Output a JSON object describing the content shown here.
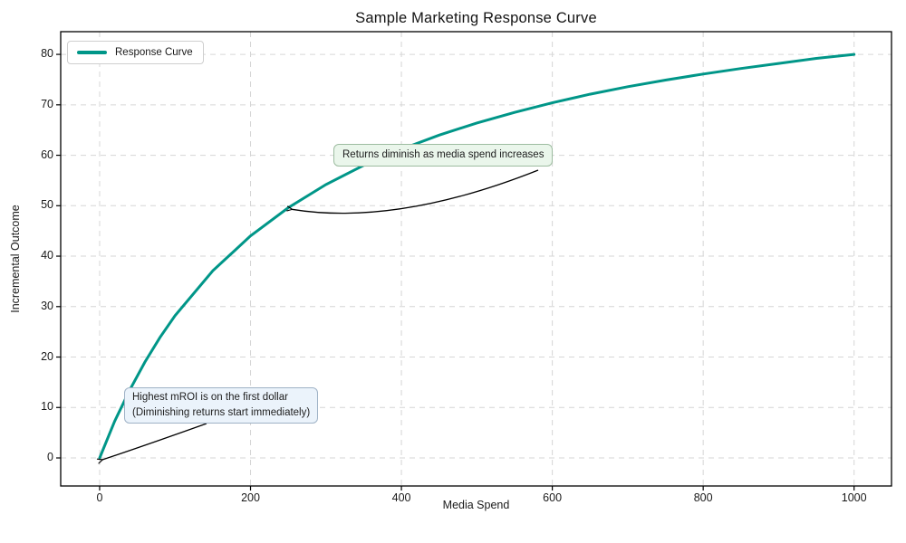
{
  "title": "Sample Marketing Response Curve",
  "axes": {
    "xlabel": "Media Spend",
    "ylabel": "Incremental Outcome"
  },
  "legend": {
    "position": "upper left",
    "items": [
      {
        "label": "Response Curve",
        "color": "#009688"
      }
    ]
  },
  "chart_data": {
    "type": "line",
    "title": "Sample Marketing Response Curve",
    "xlabel": "Media Spend",
    "ylabel": "Incremental Outcome",
    "xlim": [
      -51.6,
      1049.6
    ],
    "ylim": [
      -5.56,
      84.5
    ],
    "x_ticks": [
      0,
      200,
      400,
      600,
      800,
      1000
    ],
    "y_ticks": [
      0,
      10,
      20,
      30,
      40,
      50,
      60,
      70,
      80
    ],
    "grid": true,
    "grid_style": "dashed",
    "legend_position": "upper left",
    "series": [
      {
        "name": "Response Curve",
        "color": "#009688",
        "x": [
          0,
          20,
          40,
          60,
          80,
          100,
          150,
          200,
          250,
          300,
          350,
          400,
          450,
          500,
          550,
          600,
          650,
          700,
          750,
          800,
          850,
          900,
          950,
          1000
        ],
        "y": [
          0,
          7.3,
          13.5,
          19.0,
          23.9,
          28.2,
          37.1,
          44.0,
          49.6,
          54.2,
          58.0,
          61.2,
          64.0,
          66.4,
          68.5,
          70.4,
          72.1,
          73.6,
          74.9,
          76.1,
          77.2,
          78.2,
          79.2,
          80.0
        ]
      }
    ],
    "annotations": [
      {
        "text": "Returns diminish as media spend increases",
        "target": {
          "x": 250,
          "y": 50
        },
        "bg": "#EAF6EB",
        "border": "#9DBCA0"
      },
      {
        "text": "Highest mROI is on the first dollar\n(Diminishing returns start immediately)",
        "line1": "Highest mROI is on the first dollar",
        "line2": "(Diminishing returns start immediately)",
        "target": {
          "x": 0,
          "y": 0
        },
        "bg": "#EBF3FB",
        "border": "#9FB2C6"
      }
    ]
  }
}
